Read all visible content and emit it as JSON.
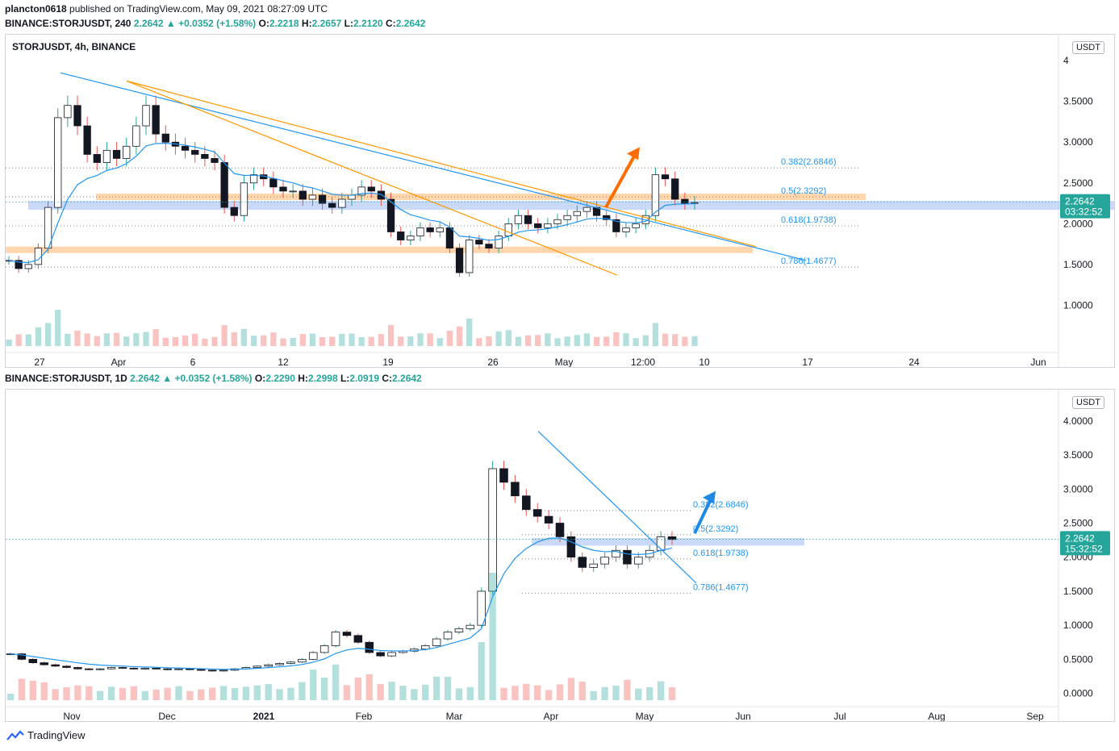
{
  "header": {
    "publisher": "plancton0618",
    "published_text": "published on TradingView.com, May 09, 2021 08:27:09 UTC"
  },
  "top_quote": {
    "symbol_tf": "BINANCE:STORJUSDT, 240",
    "price": "2.2642",
    "change": "+0.0352 (+1.58%)",
    "o_label": "O:",
    "o": "2.2218",
    "h_label": "H:",
    "h": "2.2657",
    "l_label": "L:",
    "l": "2.2120",
    "c_label": "C:",
    "c": "2.2642"
  },
  "bottom_quote": {
    "symbol_tf": "BINANCE:STORJUSDT, 1D",
    "price": "2.2642",
    "change": "+0.0352 (+1.58%)",
    "o_label": "O:",
    "o": "2.2290",
    "h_label": "H:",
    "h": "2.2998",
    "l_label": "L:",
    "l": "2.0919",
    "c_label": "C:",
    "c": "2.2642"
  },
  "footer": {
    "brand": "TradingView"
  },
  "colors": {
    "up": "#26a69a",
    "down": "#ef5350",
    "candle": "#131722",
    "ma": "#2196f3",
    "orange_line": "#ff9800",
    "fib_text": "#2196f3",
    "orange_zone": "#ffcc99",
    "blue_zone": "#bbd0f5",
    "price_label": "#26a69a"
  },
  "chart_data": [
    {
      "type": "candlestick",
      "title": "STORJUSDT, 4h, BINANCE",
      "unit": "USDT",
      "x_ticks": [
        "27",
        "Apr",
        "6",
        "12",
        "19",
        "26",
        "May",
        "12:00",
        "10",
        "17",
        "24",
        "Jun"
      ],
      "y_ticks": [
        "1.0000",
        "1.5000",
        "2.0000",
        "2.5000",
        "3.0000",
        "3.5000",
        "4"
      ],
      "ylim": [
        0.5,
        4.1
      ],
      "last_price": "2.2642",
      "countdown": "03:32:52",
      "fib_levels": [
        {
          "label": "0.382(2.6846)",
          "value": 2.6846
        },
        {
          "label": "0.5(2.3292)",
          "value": 2.3292
        },
        {
          "label": "0.618(1.9738)",
          "value": 1.9738
        },
        {
          "label": "0.786(1.4677)",
          "value": 1.4677
        }
      ],
      "zones": [
        {
          "kind": "orange",
          "low": 2.29,
          "high": 2.37
        },
        {
          "kind": "blue",
          "low": 2.17,
          "high": 2.28
        },
        {
          "kind": "orange",
          "low": 1.64,
          "high": 1.72
        }
      ],
      "price_path": [
        1.55,
        1.45,
        1.5,
        1.7,
        2.2,
        3.3,
        3.45,
        3.2,
        2.85,
        2.75,
        2.9,
        2.8,
        2.95,
        3.2,
        3.45,
        3.1,
        3.0,
        2.95,
        2.9,
        2.85,
        2.8,
        2.75,
        2.2,
        2.1,
        2.5,
        2.6,
        2.55,
        2.45,
        2.4,
        2.4,
        2.3,
        2.35,
        2.25,
        2.2,
        2.3,
        2.35,
        2.45,
        2.4,
        2.3,
        1.9,
        1.8,
        1.85,
        1.95,
        1.9,
        1.95,
        1.7,
        1.4,
        1.8,
        1.75,
        1.7,
        1.85,
        2.0,
        2.1,
        2.0,
        1.95,
        2.0,
        2.05,
        2.1,
        2.15,
        2.2,
        2.1,
        2.05,
        1.9,
        1.95,
        2.0,
        2.1,
        2.6,
        2.55,
        2.3,
        2.25,
        2.26
      ]
    },
    {
      "type": "candlestick",
      "unit": "USDT",
      "x_ticks": [
        "Nov",
        "Dec",
        "2021",
        "Feb",
        "Mar",
        "Apr",
        "May",
        "Jun",
        "Jul",
        "Aug",
        "Sep"
      ],
      "y_ticks": [
        "0.0000",
        "0.5000",
        "1.0000",
        "1.5000",
        "2.0000",
        "2.5000",
        "3.0000",
        "3.5000",
        "4.0000"
      ],
      "ylim": [
        -0.1,
        4.2
      ],
      "last_price": "2.2642",
      "countdown": "15:32:52",
      "fib_levels": [
        {
          "label": "0.382(2.6846)",
          "value": 2.6846
        },
        {
          "label": "0.5(2.3292)",
          "value": 2.3292
        },
        {
          "label": "0.618(1.9738)",
          "value": 1.9738
        },
        {
          "label": "0.786(1.4677)",
          "value": 1.4677
        }
      ],
      "zones": [
        {
          "kind": "blue",
          "low": 2.17,
          "high": 2.28
        }
      ],
      "price_path": [
        0.58,
        0.5,
        0.45,
        0.42,
        0.4,
        0.38,
        0.36,
        0.35,
        0.36,
        0.38,
        0.37,
        0.36,
        0.37,
        0.36,
        0.35,
        0.36,
        0.35,
        0.34,
        0.33,
        0.34,
        0.36,
        0.38,
        0.4,
        0.42,
        0.44,
        0.46,
        0.5,
        0.6,
        0.7,
        0.9,
        0.85,
        0.75,
        0.6,
        0.55,
        0.6,
        0.62,
        0.65,
        0.7,
        0.8,
        0.9,
        0.95,
        1.0,
        1.5,
        3.3,
        3.1,
        2.9,
        2.7,
        2.6,
        2.5,
        2.3,
        2.0,
        1.85,
        1.9,
        2.0,
        2.1,
        1.9,
        2.0,
        2.1,
        2.3,
        2.26
      ]
    }
  ]
}
